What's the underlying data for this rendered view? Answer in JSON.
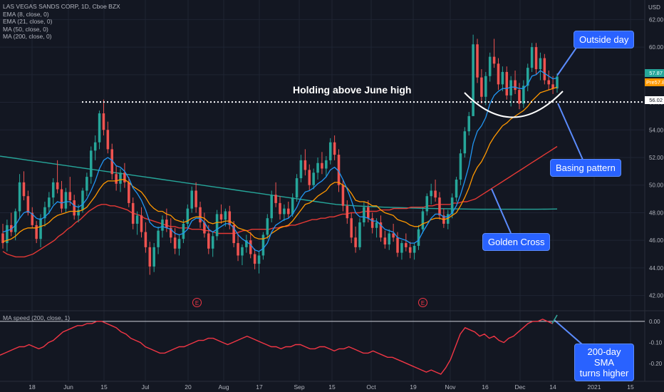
{
  "legend": {
    "title": "LAS VEGAS SANDS CORP, 1D, Cboe BZX",
    "lines": [
      "EMA (8, close, 0)",
      "EMA (21, close, 0)",
      "MA (50, close, 0)",
      "MA (200, close, 0)"
    ]
  },
  "indicator_label": "MA speed (200, close, 1)",
  "currency": "USD",
  "annotations": {
    "holding": "Holding above June high",
    "outside_day": "Outside day",
    "basing": "Basing pattern",
    "golden_cross": "Golden Cross",
    "sma_line1": "200-day SMA",
    "sma_line2": "turns higher"
  },
  "price_tags": {
    "last": "57.87",
    "pre": "Pre",
    "pre_value": "57.87",
    "level": "56.02"
  },
  "earnings_marker": "E",
  "colors": {
    "up": "#26a69a",
    "down": "#ef5350",
    "ema8": "#2196f3",
    "ema21": "#ff9800",
    "ma50": "#e53935",
    "ma200": "#26a69a",
    "speed": "#f23645",
    "callout": "#2962ff"
  },
  "chart_data": {
    "type": "candlestick",
    "title": "LAS VEGAS SANDS CORP, 1D, Cboe BZX",
    "x_ticks": [
      "18",
      "Jun",
      "15",
      "Jul",
      "20",
      "Aug",
      "17",
      "Sep",
      "15",
      "Oct",
      "19",
      "Nov",
      "16",
      "Dec",
      "14",
      "2021",
      "15"
    ],
    "y_ticks": [
      "62.00",
      "60.00",
      "58.00",
      "56.00",
      "54.00",
      "52.00",
      "50.00",
      "48.00",
      "46.00",
      "44.00",
      "42.00"
    ],
    "ylim": [
      41,
      63
    ],
    "candles": [
      [
        46.5,
        47.2,
        45.4,
        45.8
      ],
      [
        45.8,
        47.5,
        45.2,
        47.1
      ],
      [
        47.1,
        48.0,
        46.3,
        46.6
      ],
      [
        46.6,
        48.3,
        46.0,
        48.1
      ],
      [
        48.1,
        50.8,
        47.6,
        50.2
      ],
      [
        50.2,
        51.0,
        48.9,
        49.2
      ],
      [
        49.2,
        49.6,
        47.8,
        48.0
      ],
      [
        48.0,
        48.4,
        46.9,
        47.1
      ],
      [
        47.1,
        47.4,
        45.8,
        46.1
      ],
      [
        46.1,
        47.9,
        45.5,
        47.6
      ],
      [
        47.6,
        48.8,
        47.0,
        48.4
      ],
      [
        48.4,
        49.5,
        47.9,
        49.1
      ],
      [
        49.1,
        50.5,
        48.6,
        50.2
      ],
      [
        50.2,
        51.8,
        49.4,
        49.7
      ],
      [
        49.7,
        50.3,
        48.0,
        48.3
      ],
      [
        48.3,
        49.8,
        48.0,
        49.5
      ],
      [
        49.5,
        50.6,
        48.5,
        48.9
      ],
      [
        48.9,
        49.3,
        47.5,
        47.8
      ],
      [
        47.8,
        48.6,
        47.3,
        48.2
      ],
      [
        48.2,
        49.8,
        48.0,
        49.6
      ],
      [
        49.6,
        50.9,
        49.2,
        50.6
      ],
      [
        50.6,
        52.8,
        50.1,
        52.5
      ],
      [
        52.5,
        53.6,
        51.8,
        53.1
      ],
      [
        53.1,
        55.4,
        52.6,
        55.2
      ],
      [
        55.2,
        56.2,
        53.6,
        54.0
      ],
      [
        54.0,
        54.6,
        52.3,
        52.6
      ],
      [
        52.6,
        53.0,
        50.4,
        50.8
      ],
      [
        50.8,
        51.4,
        49.6,
        50.1
      ],
      [
        50.1,
        51.2,
        49.5,
        50.9
      ],
      [
        50.9,
        51.6,
        49.8,
        50.2
      ],
      [
        50.2,
        50.6,
        48.4,
        48.7
      ],
      [
        48.7,
        49.1,
        46.8,
        47.2
      ],
      [
        47.2,
        48.1,
        46.4,
        47.8
      ],
      [
        47.8,
        48.4,
        46.2,
        46.6
      ],
      [
        46.6,
        47.3,
        45.1,
        45.5
      ],
      [
        45.5,
        45.9,
        43.5,
        44.1
      ],
      [
        44.1,
        45.8,
        43.7,
        45.5
      ],
      [
        45.5,
        47.0,
        45.0,
        46.7
      ],
      [
        46.7,
        47.8,
        46.2,
        47.5
      ],
      [
        47.5,
        48.3,
        46.6,
        46.9
      ],
      [
        46.9,
        47.6,
        45.8,
        46.2
      ],
      [
        46.2,
        46.9,
        45.0,
        45.4
      ],
      [
        45.4,
        46.4,
        44.9,
        46.1
      ],
      [
        46.1,
        47.5,
        45.8,
        47.2
      ],
      [
        47.2,
        48.6,
        46.9,
        48.3
      ],
      [
        48.3,
        49.9,
        48.0,
        49.6
      ],
      [
        49.6,
        50.2,
        48.0,
        48.4
      ],
      [
        48.4,
        48.8,
        46.9,
        47.3
      ],
      [
        47.3,
        48.0,
        46.2,
        46.5
      ],
      [
        46.5,
        47.1,
        45.0,
        45.4
      ],
      [
        45.4,
        46.6,
        44.8,
        46.3
      ],
      [
        46.3,
        48.2,
        46.0,
        47.9
      ],
      [
        47.9,
        48.6,
        47.2,
        47.5
      ],
      [
        47.5,
        48.3,
        47.0,
        48.1
      ],
      [
        48.1,
        48.5,
        46.8,
        47.1
      ],
      [
        47.1,
        47.4,
        45.5,
        45.8
      ],
      [
        45.8,
        46.5,
        44.5,
        44.9
      ],
      [
        44.9,
        45.7,
        44.2,
        45.5
      ],
      [
        45.5,
        46.4,
        45.1,
        46.0
      ],
      [
        46.0,
        46.6,
        44.7,
        45.0
      ],
      [
        45.0,
        45.4,
        43.9,
        44.3
      ],
      [
        44.3,
        45.2,
        43.6,
        44.9
      ],
      [
        44.9,
        46.6,
        44.6,
        46.4
      ],
      [
        46.4,
        47.9,
        46.1,
        47.6
      ],
      [
        47.6,
        49.6,
        47.3,
        49.3
      ],
      [
        49.3,
        50.2,
        48.4,
        48.7
      ],
      [
        48.7,
        49.2,
        47.5,
        47.9
      ],
      [
        47.9,
        48.6,
        47.4,
        48.3
      ],
      [
        48.3,
        48.8,
        47.6,
        47.9
      ],
      [
        47.9,
        49.4,
        47.7,
        49.1
      ],
      [
        49.1,
        50.8,
        48.8,
        50.5
      ],
      [
        50.5,
        52.2,
        50.2,
        51.8
      ],
      [
        51.8,
        52.6,
        50.7,
        51.1
      ],
      [
        51.1,
        51.5,
        49.6,
        50.0
      ],
      [
        50.0,
        51.2,
        49.7,
        50.9
      ],
      [
        50.9,
        52.0,
        50.4,
        51.6
      ],
      [
        51.6,
        52.4,
        50.8,
        51.2
      ],
      [
        51.2,
        52.1,
        50.6,
        51.8
      ],
      [
        51.8,
        53.4,
        51.5,
        53.1
      ],
      [
        53.1,
        53.6,
        51.8,
        52.2
      ],
      [
        52.2,
        52.6,
        49.5,
        50.0
      ],
      [
        50.0,
        50.4,
        48.1,
        48.5
      ],
      [
        48.5,
        48.9,
        47.2,
        47.6
      ],
      [
        47.6,
        48.0,
        45.8,
        46.2
      ],
      [
        46.2,
        47.0,
        45.1,
        45.5
      ],
      [
        45.5,
        47.6,
        45.3,
        47.3
      ],
      [
        47.3,
        48.8,
        47.0,
        48.4
      ],
      [
        48.4,
        48.9,
        47.3,
        47.6
      ],
      [
        47.6,
        48.0,
        46.5,
        46.9
      ],
      [
        46.9,
        47.6,
        46.2,
        47.3
      ],
      [
        47.3,
        47.8,
        45.9,
        46.2
      ],
      [
        46.2,
        46.7,
        45.4,
        45.7
      ],
      [
        45.7,
        46.8,
        45.3,
        46.5
      ],
      [
        46.5,
        47.2,
        45.9,
        46.2
      ],
      [
        46.2,
        46.6,
        44.8,
        45.1
      ],
      [
        45.1,
        46.0,
        44.6,
        45.8
      ],
      [
        45.8,
        46.5,
        45.2,
        45.5
      ],
      [
        45.5,
        45.9,
        44.7,
        45.1
      ],
      [
        45.1,
        45.8,
        44.6,
        45.6
      ],
      [
        45.6,
        47.1,
        45.3,
        46.8
      ],
      [
        46.8,
        48.4,
        46.5,
        48.1
      ],
      [
        48.1,
        49.4,
        47.8,
        49.2
      ],
      [
        49.2,
        50.1,
        48.6,
        49.6
      ],
      [
        49.6,
        50.4,
        48.8,
        49.1
      ],
      [
        49.1,
        49.5,
        47.5,
        47.8
      ],
      [
        47.8,
        48.3,
        46.9,
        47.2
      ],
      [
        47.2,
        48.2,
        46.8,
        47.9
      ],
      [
        47.9,
        49.4,
        47.6,
        49.1
      ],
      [
        49.1,
        50.6,
        48.8,
        50.4
      ],
      [
        50.4,
        52.6,
        50.0,
        52.3
      ],
      [
        52.3,
        54.2,
        52.0,
        53.9
      ],
      [
        53.9,
        55.3,
        53.6,
        55.0
      ],
      [
        55.0,
        60.9,
        55.0,
        60.2
      ],
      [
        60.2,
        60.6,
        57.4,
        57.8
      ],
      [
        57.8,
        58.4,
        55.9,
        56.4
      ],
      [
        56.4,
        58.2,
        55.8,
        57.9
      ],
      [
        57.9,
        59.6,
        57.5,
        59.3
      ],
      [
        59.3,
        60.6,
        58.5,
        58.8
      ],
      [
        58.8,
        59.2,
        56.9,
        57.3
      ],
      [
        57.3,
        58.6,
        56.8,
        58.2
      ],
      [
        58.2,
        58.6,
        56.2,
        56.5
      ],
      [
        56.5,
        57.9,
        55.7,
        57.6
      ],
      [
        57.6,
        58.3,
        56.6,
        56.9
      ],
      [
        56.9,
        57.4,
        55.5,
        55.9
      ],
      [
        55.9,
        57.6,
        55.6,
        57.2
      ],
      [
        57.2,
        58.8,
        56.8,
        58.5
      ],
      [
        58.5,
        60.3,
        58.2,
        60.0
      ],
      [
        60.0,
        60.3,
        58.0,
        58.4
      ],
      [
        58.4,
        59.6,
        57.6,
        59.2
      ],
      [
        59.2,
        59.5,
        57.3,
        57.6
      ],
      [
        57.6,
        58.3,
        56.9,
        57.3
      ],
      [
        57.3,
        57.9,
        56.6,
        57.0
      ],
      [
        57.0,
        58.1,
        56.7,
        57.87
      ]
    ],
    "ema8": [
      46.6,
      46.7,
      46.8,
      47.1,
      47.6,
      48.0,
      48.1,
      47.9,
      47.6,
      47.5,
      47.7,
      48.0,
      48.5,
      48.8,
      48.7,
      48.8,
      48.8,
      48.5,
      48.4,
      48.6,
      49.0,
      49.6,
      50.3,
      51.2,
      51.8,
      52.0,
      51.8,
      51.4,
      51.3,
      51.0,
      50.5,
      49.8,
      49.4,
      48.9,
      48.2,
      47.3,
      47.0,
      46.9,
      47.0,
      46.9,
      46.8,
      46.5,
      46.4,
      46.5,
      46.8,
      47.4,
      47.6,
      47.6,
      47.3,
      46.8,
      46.6,
      46.8,
      47.0,
      47.2,
      47.2,
      46.9,
      46.4,
      46.1,
      45.9,
      45.7,
      45.3,
      45.2,
      45.4,
      45.8,
      46.6,
      47.1,
      47.3,
      47.5,
      47.6,
      47.9,
      48.4,
      49.1,
      49.5,
      49.6,
      49.8,
      50.1,
      50.3,
      50.6,
      51.1,
      51.3,
      51.0,
      50.4,
      49.7,
      48.9,
      48.0,
      47.7,
      47.7,
      47.6,
      47.4,
      47.4,
      47.1,
      46.8,
      46.7,
      46.6,
      46.2,
      46.1,
      46.0,
      45.8,
      45.8,
      46.0,
      46.6,
      47.1,
      47.6,
      47.9,
      47.9,
      47.7,
      47.7,
      48.0,
      48.5,
      49.3,
      50.3,
      51.4,
      53.0,
      53.9,
      54.3,
      54.9,
      55.9,
      56.5,
      56.8,
      57.0,
      57.0,
      57.1,
      57.1,
      57.0,
      57.0,
      57.3,
      57.9,
      58.0,
      58.3,
      58.1,
      57.9,
      57.7,
      57.76
    ],
    "ema21": [
      45.9,
      46.0,
      46.1,
      46.3,
      46.6,
      46.8,
      46.9,
      46.9,
      46.9,
      47.0,
      47.1,
      47.3,
      47.6,
      47.8,
      47.9,
      48.0,
      48.1,
      48.1,
      48.1,
      48.2,
      48.4,
      48.8,
      49.2,
      49.7,
      50.1,
      50.3,
      50.3,
      50.3,
      50.4,
      50.4,
      50.2,
      49.9,
      49.7,
      49.5,
      49.1,
      48.6,
      48.3,
      48.1,
      48.1,
      47.9,
      47.8,
      47.5,
      47.4,
      47.3,
      47.4,
      47.6,
      47.7,
      47.7,
      47.6,
      47.3,
      47.2,
      47.3,
      47.3,
      47.4,
      47.4,
      47.2,
      46.9,
      46.8,
      46.7,
      46.5,
      46.2,
      46.1,
      46.1,
      46.2,
      46.5,
      46.7,
      46.9,
      47.0,
      47.1,
      47.4,
      47.8,
      48.2,
      48.6,
      48.7,
      48.9,
      49.2,
      49.4,
      49.6,
      50.0,
      50.2,
      50.2,
      50.0,
      49.8,
      49.4,
      48.9,
      48.8,
      48.8,
      48.7,
      48.5,
      48.5,
      48.2,
      48.0,
      47.9,
      47.8,
      47.5,
      47.4,
      47.3,
      47.1,
      47.0,
      47.0,
      47.2,
      47.3,
      47.5,
      47.6,
      47.6,
      47.5,
      47.6,
      47.8,
      48.0,
      48.5,
      49.1,
      49.8,
      50.7,
      51.3,
      51.7,
      52.3,
      53.0,
      53.5,
      53.9,
      54.3,
      54.5,
      54.8,
      55.0,
      55.2,
      55.4,
      55.7,
      56.1,
      56.4,
      56.7,
      56.8,
      56.9,
      57.0,
      57.1
    ],
    "ma50": [
      45.2,
      45.0,
      44.9,
      44.8,
      44.8,
      44.8,
      44.9,
      45.0,
      45.2,
      45.4,
      45.6,
      45.8,
      46.0,
      46.3,
      46.5,
      46.8,
      47.0,
      47.3,
      47.5,
      47.8,
      48.1,
      48.3,
      48.5,
      48.6,
      48.6,
      48.5,
      48.5,
      48.4,
      48.3,
      48.2,
      48.0,
      47.9,
      47.8,
      47.6,
      47.5,
      47.4,
      47.3,
      47.2,
      47.1,
      47.0,
      47.0,
      46.9,
      46.9,
      46.9,
      46.8,
      46.8,
      46.8,
      46.7,
      46.7,
      46.6,
      46.5,
      46.5,
      46.5,
      46.5,
      46.5,
      46.6,
      46.7,
      46.7,
      46.8,
      46.8,
      46.8,
      46.8,
      46.8,
      46.9,
      46.9,
      47.0,
      47.0,
      47.1,
      47.1,
      47.2,
      47.3,
      47.4,
      47.5,
      47.5,
      47.6,
      47.6,
      47.7,
      47.7,
      47.8,
      47.9,
      47.9,
      48.0,
      48.0,
      48.0,
      48.1,
      48.1,
      48.1,
      48.1,
      48.2,
      48.2,
      48.2,
      48.3,
      48.3,
      48.3,
      48.3,
      48.4,
      48.4,
      48.4,
      48.4,
      48.5,
      48.5,
      48.6,
      48.6,
      48.6,
      48.6,
      48.7,
      48.7,
      48.8,
      48.8,
      48.9,
      49.0,
      49.2,
      49.4,
      49.6,
      49.8,
      50.0,
      50.2,
      50.4,
      50.6,
      50.8,
      51.0,
      51.2,
      51.4,
      51.6,
      51.8,
      52.0,
      52.2,
      52.4,
      52.6,
      52.8
    ],
    "ma200": [
      52.1,
      52.0,
      51.9,
      51.8,
      51.7,
      51.6,
      51.5,
      51.4,
      51.3,
      51.2,
      51.1,
      51.0,
      50.9,
      50.8,
      50.7,
      50.6,
      50.5,
      50.4,
      50.3,
      50.2,
      50.1,
      50.0,
      49.9,
      49.8,
      49.7,
      49.6,
      49.5,
      49.4,
      49.3,
      49.2,
      49.1,
      49.0,
      48.9,
      48.8,
      48.7,
      48.6,
      48.55,
      48.5,
      48.46,
      48.43,
      48.4,
      48.38,
      48.36,
      48.34,
      48.32,
      48.3,
      48.29,
      48.28,
      48.27,
      48.26,
      48.25,
      48.25,
      48.25,
      48.25,
      48.25,
      48.25,
      48.25,
      48.26,
      48.27
    ],
    "speed": [
      -0.16,
      -0.15,
      -0.14,
      -0.13,
      -0.12,
      -0.12,
      -0.11,
      -0.12,
      -0.13,
      -0.12,
      -0.1,
      -0.09,
      -0.07,
      -0.05,
      -0.04,
      -0.03,
      -0.02,
      -0.02,
      -0.01,
      -0.01,
      0.0,
      0.0,
      -0.01,
      -0.02,
      -0.03,
      -0.05,
      -0.06,
      -0.08,
      -0.09,
      -0.1,
      -0.12,
      -0.13,
      -0.14,
      -0.15,
      -0.15,
      -0.14,
      -0.13,
      -0.12,
      -0.12,
      -0.11,
      -0.1,
      -0.09,
      -0.09,
      -0.08,
      -0.08,
      -0.09,
      -0.1,
      -0.11,
      -0.1,
      -0.09,
      -0.08,
      -0.07,
      -0.08,
      -0.09,
      -0.1,
      -0.11,
      -0.12,
      -0.12,
      -0.13,
      -0.12,
      -0.12,
      -0.11,
      -0.11,
      -0.12,
      -0.13,
      -0.13,
      -0.12,
      -0.12,
      -0.13,
      -0.14,
      -0.13,
      -0.13,
      -0.12,
      -0.13,
      -0.14,
      -0.15,
      -0.15,
      -0.14,
      -0.15,
      -0.16,
      -0.17,
      -0.17,
      -0.18,
      -0.19,
      -0.2,
      -0.21,
      -0.22,
      -0.23,
      -0.24,
      -0.23,
      -0.24,
      -0.25,
      -0.22,
      -0.18,
      -0.12,
      -0.06,
      -0.03,
      -0.04,
      -0.05,
      -0.07,
      -0.06,
      -0.08,
      -0.07,
      -0.09,
      -0.1,
      -0.08,
      -0.07,
      -0.05,
      -0.03,
      -0.01,
      0.0,
      0.0,
      0.01,
      0.0,
      -0.01,
      0.03
    ],
    "speed_ylim": [
      -0.26,
      0.03
    ],
    "speed_ticks": [
      "0.00",
      "-0.10",
      "-0.20"
    ],
    "reference_level": 56.02
  }
}
